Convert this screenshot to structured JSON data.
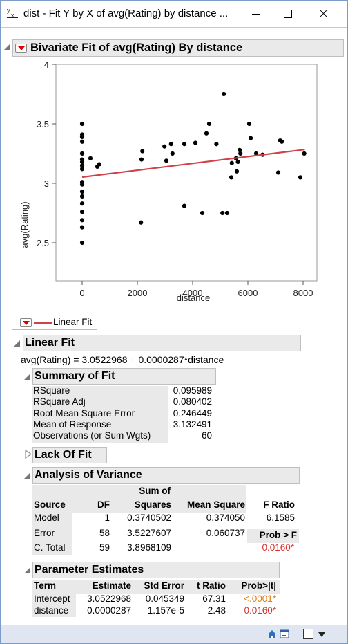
{
  "window": {
    "title": "dist - Fit Y by X of avg(Rating) by distance ...",
    "icon": "jmp-fit-y-by-x-icon"
  },
  "report": {
    "title": "Bivariate Fit of avg(Rating) By distance",
    "legend_label": "Linear Fit",
    "linear_fit_header": "Linear Fit",
    "equation": "avg(Rating) = 3.0522968 + 0.0000287*distance"
  },
  "chart_data": {
    "type": "scatter",
    "xlabel": "distance",
    "ylabel": "avg(Rating)",
    "xlim": [
      -950,
      8500
    ],
    "ylim": [
      2.18,
      4.0
    ],
    "xticks": [
      0,
      2000,
      4000,
      6000,
      8000
    ],
    "yticks": [
      2.5,
      3,
      3.5,
      4
    ],
    "xtick_labels": [
      "0",
      "2000",
      "4000",
      "6000",
      "8000"
    ],
    "ytick_labels": [
      "2.5",
      "3",
      "3.5",
      "4"
    ],
    "grid": false,
    "points": [
      [
        0,
        3.5
      ],
      [
        0,
        3.41
      ],
      [
        0,
        3.39
      ],
      [
        0,
        3.35
      ],
      [
        0,
        3.25
      ],
      [
        0,
        3.2
      ],
      [
        0,
        3.18
      ],
      [
        0,
        3.15
      ],
      [
        0,
        3.12
      ],
      [
        0,
        3.01
      ],
      [
        0,
        2.99
      ],
      [
        0,
        2.93
      ],
      [
        0,
        2.89
      ],
      [
        0,
        2.83
      ],
      [
        0,
        2.76
      ],
      [
        0,
        2.69
      ],
      [
        0,
        2.63
      ],
      [
        0,
        2.5
      ],
      [
        300,
        3.21
      ],
      [
        550,
        3.14
      ],
      [
        620,
        3.16
      ],
      [
        2130,
        2.67
      ],
      [
        2150,
        3.2
      ],
      [
        2180,
        3.27
      ],
      [
        2980,
        3.31
      ],
      [
        3050,
        3.19
      ],
      [
        3220,
        3.33
      ],
      [
        3270,
        3.25
      ],
      [
        3700,
        3.33
      ],
      [
        3700,
        2.81
      ],
      [
        4100,
        3.34
      ],
      [
        4350,
        2.75
      ],
      [
        4500,
        3.42
      ],
      [
        4600,
        3.5
      ],
      [
        4860,
        3.33
      ],
      [
        5080,
        2.75
      ],
      [
        5130,
        3.75
      ],
      [
        5250,
        2.75
      ],
      [
        5400,
        3.05
      ],
      [
        5420,
        3.17
      ],
      [
        5570,
        3.21
      ],
      [
        5600,
        3.1
      ],
      [
        5640,
        3.18
      ],
      [
        5700,
        3.28
      ],
      [
        5730,
        3.25
      ],
      [
        6050,
        3.5
      ],
      [
        6100,
        3.38
      ],
      [
        6300,
        3.25
      ],
      [
        6530,
        3.24
      ],
      [
        7100,
        3.09
      ],
      [
        7170,
        3.36
      ],
      [
        7230,
        3.35
      ],
      [
        7900,
        3.05
      ],
      [
        8040,
        3.25
      ]
    ],
    "fit_line": {
      "intercept": 3.0522968,
      "slope": 2.87e-05,
      "x_range": [
        0,
        8060
      ],
      "color": "#d0424a"
    },
    "point_color": "#000000"
  },
  "summary_of_fit": {
    "header": "Summary of Fit",
    "rows": [
      {
        "label": "RSquare",
        "value": "0.095989"
      },
      {
        "label": "RSquare Adj",
        "value": "0.080402"
      },
      {
        "label": "Root Mean Square Error",
        "value": "0.246449"
      },
      {
        "label": "Mean of Response",
        "value": "3.132491"
      },
      {
        "label": "Observations (or Sum Wgts)",
        "value": "60"
      }
    ]
  },
  "lack_of_fit": {
    "header": "Lack Of Fit"
  },
  "anova": {
    "header": "Analysis of Variance",
    "col_source": "Source",
    "col_df": "DF",
    "col_ss_top": "Sum of",
    "col_ss": "Squares",
    "col_ms": "Mean Square",
    "col_f": "F Ratio",
    "prob_label": "Prob > F",
    "rows": [
      {
        "source": "Model",
        "df": "1",
        "ss": "0.3740502",
        "ms": "0.374050",
        "f": "6.1585"
      },
      {
        "source": "Error",
        "df": "58",
        "ss": "3.5227607",
        "ms": "0.060737",
        "f": ""
      },
      {
        "source": "C. Total",
        "df": "59",
        "ss": "3.8968109",
        "ms": "",
        "f": ""
      }
    ],
    "prob_value": "0.0160*"
  },
  "parameter_estimates": {
    "header": "Parameter Estimates",
    "cols": [
      "Term",
      "Estimate",
      "Std Error",
      "t Ratio",
      "Prob>|t|"
    ],
    "rows": [
      {
        "term": "Intercept",
        "estimate": "3.0522968",
        "std_error": "0.045349",
        "t_ratio": "67.31",
        "prob": "<.0001*"
      },
      {
        "term": "distance",
        "estimate": "0.0000287",
        "std_error": "1.157e-5",
        "t_ratio": "2.48",
        "prob": "0.0160*"
      }
    ]
  },
  "colors": {
    "header_bg": "#eaeaea",
    "fit_line": "#d0424a",
    "significant_red": "#d6322d",
    "significant_orange": "#e07b10",
    "status_bar": "#dfe6f1"
  }
}
